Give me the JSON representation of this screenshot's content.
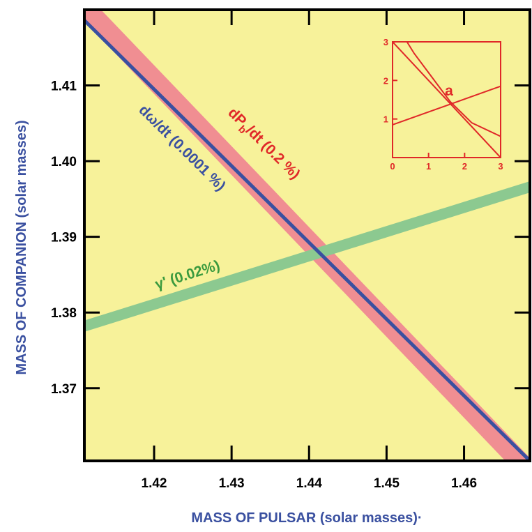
{
  "chart_data": {
    "type": "line",
    "xlabel": "MASS OF PULSAR (solar masses)·",
    "ylabel": "MASS OF COMPANION (solar masses)",
    "xlim": [
      1.411,
      1.4685
    ],
    "ylim": [
      1.3604,
      1.42
    ],
    "x_ticks": [
      "1.42",
      "1.43",
      "1.44",
      "1.45",
      "1.46"
    ],
    "y_ticks": [
      "1.41",
      "1.40",
      "1.39",
      "1.38",
      "1.37"
    ],
    "colors": {
      "background": "#f7f29a",
      "periastron": "#3a50a0",
      "orbital_decay": "#f08e92",
      "gamma": "#8cc990",
      "inset": "#e02828",
      "axis": "#000000"
    },
    "series": [
      {
        "label": "dP_b/dt (0.2 %)",
        "label_parts": {
          "main": "dP",
          "sub": "b",
          "rest": "/dt (0.2 %)"
        },
        "color": "#f08e92",
        "kind": "band",
        "center": [
          [
            1.411,
            1.4204
          ],
          [
            1.4685,
            1.3589
          ]
        ],
        "half_width_y": 0.0019
      },
      {
        "label": "dω/dt (0.0001 %)",
        "color": "#3a50a0",
        "kind": "line",
        "points": [
          [
            1.411,
            1.4186
          ],
          [
            1.4685,
            1.3604
          ]
        ]
      },
      {
        "label": "γ' (0.02%)",
        "color": "#8cc990",
        "kind": "band",
        "center": [
          [
            1.411,
            1.3782
          ],
          [
            1.4685,
            1.3966
          ]
        ],
        "half_width_y": 0.00075
      }
    ],
    "inset": {
      "label": "a",
      "xlim": [
        0,
        3
      ],
      "ylim": [
        0,
        3
      ],
      "x_ticks": [
        "0",
        "1",
        "2",
        "3"
      ],
      "y_ticks": [
        "1",
        "2",
        "3"
      ],
      "lines": [
        [
          [
            0,
            3.0
          ],
          [
            3,
            0
          ]
        ],
        [
          [
            0,
            0.85
          ],
          [
            3,
            1.85
          ]
        ],
        [
          [
            0.4,
            3.0
          ],
          [
            0.6,
            2.7
          ],
          [
            1.0,
            2.2
          ],
          [
            1.6,
            1.45
          ],
          [
            2.2,
            0.9
          ],
          [
            3,
            0.55
          ]
        ]
      ]
    }
  }
}
